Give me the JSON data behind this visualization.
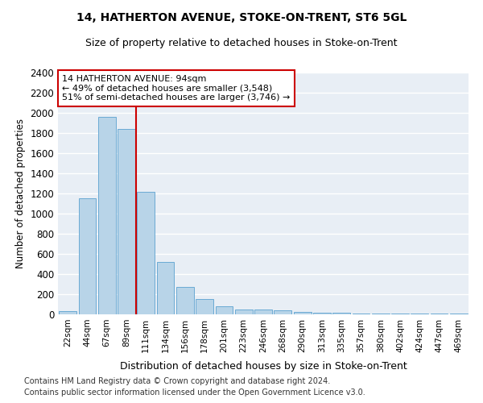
{
  "title": "14, HATHERTON AVENUE, STOKE-ON-TRENT, ST6 5GL",
  "subtitle": "Size of property relative to detached houses in Stoke-on-Trent",
  "xlabel": "Distribution of detached houses by size in Stoke-on-Trent",
  "ylabel": "Number of detached properties",
  "bar_color": "#b8d4e8",
  "bar_edge_color": "#6aaad4",
  "bg_color": "#e8eef5",
  "grid_color": "#ffffff",
  "annotation_box_color": "#cc0000",
  "vline_color": "#cc0000",
  "categories": [
    "22sqm",
    "44sqm",
    "67sqm",
    "89sqm",
    "111sqm",
    "134sqm",
    "156sqm",
    "178sqm",
    "201sqm",
    "223sqm",
    "246sqm",
    "268sqm",
    "290sqm",
    "313sqm",
    "335sqm",
    "357sqm",
    "380sqm",
    "402sqm",
    "424sqm",
    "447sqm",
    "469sqm"
  ],
  "values": [
    30,
    1150,
    1960,
    1840,
    1220,
    520,
    270,
    155,
    80,
    50,
    45,
    40,
    22,
    18,
    14,
    5,
    5,
    5,
    5,
    5,
    5
  ],
  "vline_pos": 3.5,
  "annotation_line1": "14 HATHERTON AVENUE: 94sqm",
  "annotation_line2": "← 49% of detached houses are smaller (3,548)",
  "annotation_line3": "51% of semi-detached houses are larger (3,746) →",
  "ylim": [
    0,
    2400
  ],
  "yticks": [
    0,
    200,
    400,
    600,
    800,
    1000,
    1200,
    1400,
    1600,
    1800,
    2000,
    2200,
    2400
  ],
  "footnote1": "Contains HM Land Registry data © Crown copyright and database right 2024.",
  "footnote2": "Contains public sector information licensed under the Open Government Licence v3.0."
}
